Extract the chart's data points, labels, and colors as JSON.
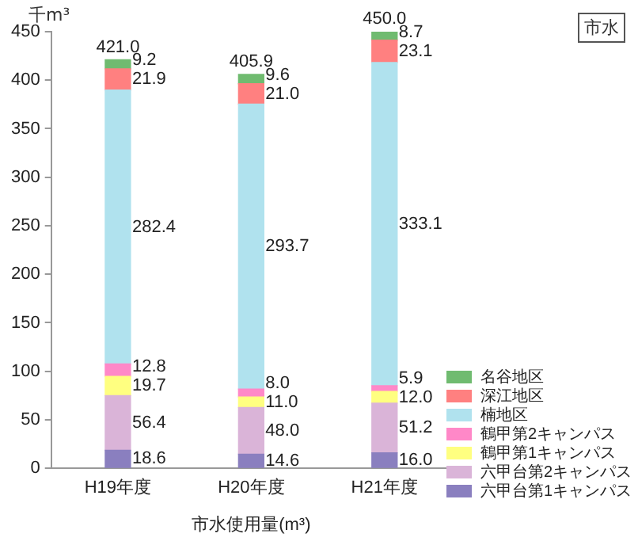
{
  "chart_data": {
    "type": "bar",
    "stacked": true,
    "ylabel": "千m³",
    "xlabel": "市水使用量(m³)",
    "annotations": [
      "市水"
    ],
    "categories": [
      "H19年度",
      "H20年度",
      "H21年度"
    ],
    "series": [
      {
        "name": "六甲台第1キャンパス",
        "color": "#8a7fbf",
        "values": [
          18.6,
          14.6,
          16.0
        ]
      },
      {
        "name": "六甲台第2キャンパス",
        "color": "#dab4d8",
        "values": [
          56.4,
          48.0,
          51.2
        ]
      },
      {
        "name": "鶴甲第1キャンパス",
        "color": "#ffff80",
        "values": [
          19.7,
          11.0,
          12.0
        ]
      },
      {
        "name": "鶴甲第2キャンパス",
        "color": "#ff88c8",
        "values": [
          12.8,
          8.0,
          5.9
        ]
      },
      {
        "name": "楠地区",
        "color": "#b0e2ee",
        "values": [
          282.4,
          293.7,
          333.1
        ]
      },
      {
        "name": "深江地区",
        "color": "#ff8080",
        "values": [
          21.9,
          21.0,
          23.1
        ]
      },
      {
        "name": "名谷地区",
        "color": "#70bb70",
        "values": [
          9.2,
          9.6,
          8.7
        ]
      }
    ],
    "totals": [
      "421.0",
      "405.9",
      "450.0"
    ],
    "value_labels": [
      [
        "18.6",
        "14.6",
        "16.0"
      ],
      [
        "56.4",
        "48.0",
        "51.2"
      ],
      [
        "19.7",
        "11.0",
        "12.0"
      ],
      [
        "12.8",
        "8.0",
        "5.9"
      ],
      [
        "282.4",
        "293.7",
        "333.1"
      ],
      [
        "21.9",
        "21.0",
        "23.1"
      ],
      [
        "9.2",
        "9.6",
        "8.7"
      ]
    ],
    "ylim": [
      0,
      450
    ],
    "yticks": [
      0,
      50,
      100,
      150,
      200,
      250,
      300,
      350,
      400,
      450
    ],
    "grid": false,
    "legend": "bottom right"
  }
}
